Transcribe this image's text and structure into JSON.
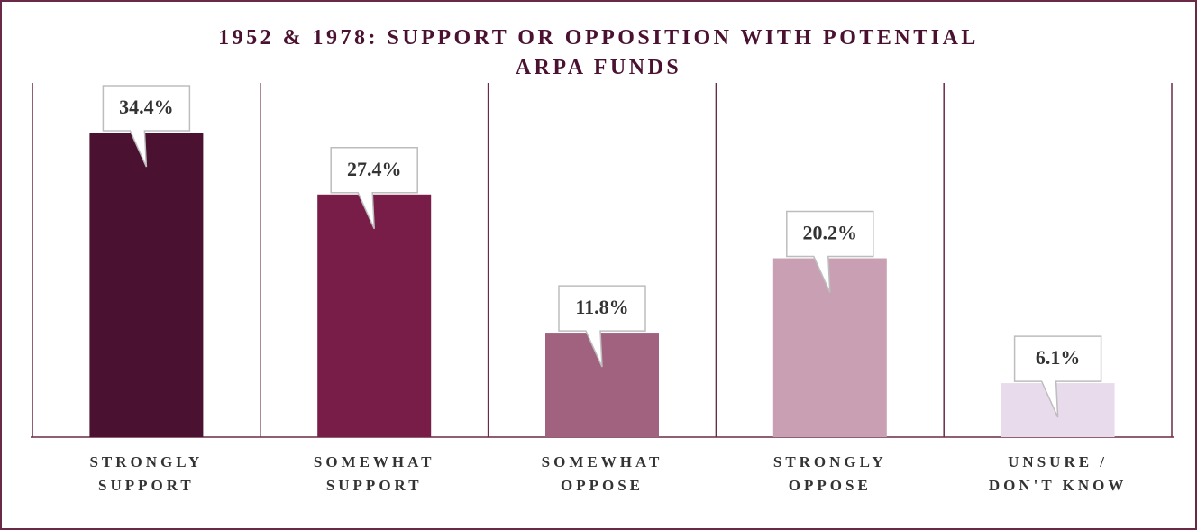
{
  "chart_data": {
    "type": "bar",
    "title": "1952 & 1978: SUPPORT OR OPPOSITION WITH POTENTIAL ARPA FUNDS",
    "categories": [
      "STRONGLY SUPPORT",
      "SOMEWHAT SUPPORT",
      "SOMEWHAT OPPOSE",
      "STRONGLY OPPOSE",
      "UNSURE / DON'T KNOW"
    ],
    "values": [
      34.4,
      27.4,
      11.8,
      20.2,
      6.1
    ],
    "value_labels": [
      "34.4%",
      "27.4%",
      "11.8%",
      "20.2%",
      "6.1%"
    ],
    "colors": [
      "#4a1230",
      "#771d48",
      "#a0627f",
      "#c9a0b3",
      "#e8dbec"
    ],
    "ylim": [
      0,
      40
    ]
  }
}
